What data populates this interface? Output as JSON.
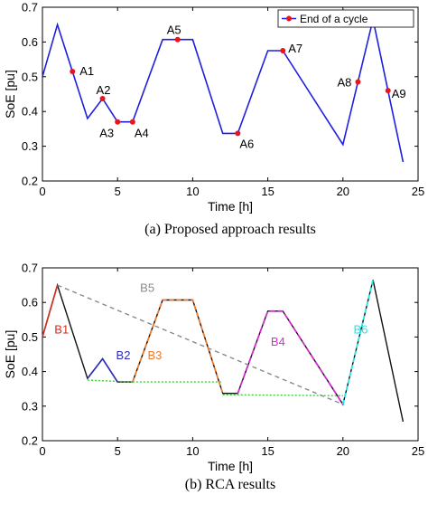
{
  "colors": {
    "blue": "#1f1fe0",
    "red": "#e8141e",
    "black": "#111111",
    "grey_dash": "#8a8a8a",
    "green": "#2ed52e",
    "orange": "#f07a2a",
    "magenta": "#d62ad6",
    "cyan": "#22e6e6",
    "dark_blue": "#2b2bc0",
    "brown_red": "#d22d1d"
  },
  "chart_data": [
    {
      "type": "line",
      "caption": "(a) Proposed approach results",
      "xlabel": "Time [h]",
      "ylabel": "SoE [pu]",
      "xlim": [
        0,
        25
      ],
      "ylim": [
        0.2,
        0.7
      ],
      "xticks": [
        "0",
        "5",
        "10",
        "15",
        "20",
        "25"
      ],
      "yticks": [
        "0.2",
        "0.3",
        "0.4",
        "0.5",
        "0.6",
        "0.7"
      ],
      "grid": false,
      "legend": {
        "position": "top-right",
        "entries": [
          "End of a cycle"
        ]
      },
      "series": [
        {
          "name": "",
          "x": [
            0,
            1,
            3,
            4,
            5,
            6,
            8,
            10,
            12,
            13,
            15,
            16,
            20,
            21,
            22,
            23,
            24
          ],
          "y": [
            0.5,
            0.65,
            0.38,
            0.437,
            0.37,
            0.37,
            0.607,
            0.607,
            0.337,
            0.337,
            0.575,
            0.575,
            0.305,
            0.485,
            0.665,
            0.46,
            0.255
          ]
        }
      ],
      "markers": [
        {
          "label": "A1",
          "x": 2,
          "y": 0.515
        },
        {
          "label": "A2",
          "x": 4,
          "y": 0.437
        },
        {
          "label": "A3",
          "x": 5,
          "y": 0.37
        },
        {
          "label": "A4",
          "x": 6,
          "y": 0.37
        },
        {
          "label": "A5",
          "x": 9,
          "y": 0.607
        },
        {
          "label": "A6",
          "x": 13,
          "y": 0.337
        },
        {
          "label": "A7",
          "x": 16,
          "y": 0.575
        },
        {
          "label": "A8",
          "x": 21,
          "y": 0.485
        },
        {
          "label": "A9",
          "x": 23,
          "y": 0.46
        }
      ]
    },
    {
      "type": "line",
      "caption": "(b) RCA results",
      "xlabel": "Time [h]",
      "ylabel": "SoE [pu]",
      "xlim": [
        0,
        25
      ],
      "ylim": [
        0.2,
        0.7
      ],
      "xticks": [
        "0",
        "5",
        "10",
        "15",
        "20",
        "25"
      ],
      "yticks": [
        "0.2",
        "0.3",
        "0.4",
        "0.5",
        "0.6",
        "0.7"
      ],
      "grid": false,
      "series": [
        {
          "name": "",
          "x": [
            0,
            1,
            3,
            4,
            5,
            6,
            8,
            10,
            12,
            13,
            15,
            16,
            20,
            22,
            24
          ],
          "y": [
            0.5,
            0.65,
            0.38,
            0.437,
            0.37,
            0.37,
            0.607,
            0.607,
            0.337,
            0.337,
            0.575,
            0.575,
            0.305,
            0.665,
            0.255
          ]
        }
      ],
      "overlays": [
        {
          "label": "B1",
          "x": [
            0,
            1
          ],
          "y": [
            0.5,
            0.65
          ]
        },
        {
          "label": "B2",
          "x": [
            3,
            4,
            5
          ],
          "y": [
            0.38,
            0.437,
            0.37
          ]
        },
        {
          "label": "B3",
          "x": [
            6,
            8,
            10,
            12
          ],
          "y": [
            0.37,
            0.607,
            0.607,
            0.337
          ]
        },
        {
          "label": "B4",
          "x": [
            13,
            15,
            16,
            20
          ],
          "y": [
            0.337,
            0.575,
            0.575,
            0.305
          ]
        },
        {
          "label": "B5",
          "x": [
            1,
            20
          ],
          "y": [
            0.65,
            0.305
          ]
        },
        {
          "label": "B6",
          "x": [
            20,
            22
          ],
          "y": [
            0.305,
            0.665
          ]
        },
        {
          "label": "",
          "x": [
            3,
            6
          ],
          "y": [
            0.375,
            0.37
          ]
        },
        {
          "label": "",
          "x": [
            6,
            12
          ],
          "y": [
            0.37,
            0.37
          ]
        },
        {
          "label": "",
          "x": [
            12,
            20
          ],
          "y": [
            0.333,
            0.33
          ]
        }
      ],
      "labels": [
        {
          "text": "B1",
          "x": 0.8,
          "y": 0.51
        },
        {
          "text": "B2",
          "x": 4.9,
          "y": 0.435
        },
        {
          "text": "B3",
          "x": 7.0,
          "y": 0.435
        },
        {
          "text": "B4",
          "x": 15.2,
          "y": 0.475
        },
        {
          "text": "B5",
          "x": 6.5,
          "y": 0.63
        },
        {
          "text": "B6",
          "x": 20.7,
          "y": 0.51
        }
      ]
    }
  ]
}
